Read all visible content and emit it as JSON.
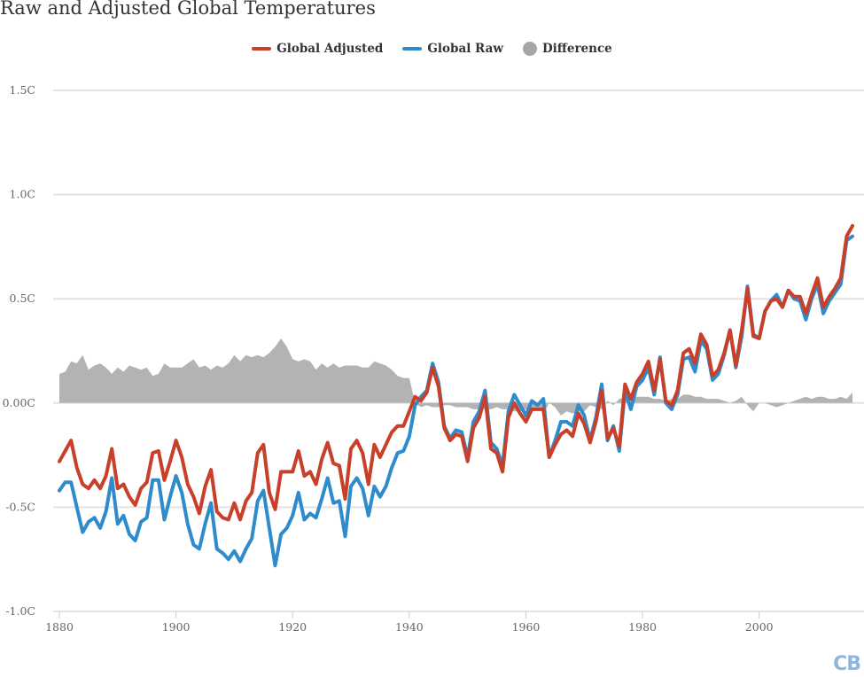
{
  "chart_data": {
    "type": "line",
    "title": "Raw and Adjusted Global Temperatures",
    "xlabel": "",
    "ylabel": "",
    "xlim": [
      1880,
      2016
    ],
    "ylim": [
      -1.0,
      1.5
    ],
    "x_ticks": [
      "1880",
      "1900",
      "1920",
      "1940",
      "1960",
      "1980",
      "2000"
    ],
    "y_ticks": [
      "-1.0C",
      "-0.5C",
      "0.00C",
      "0.5C",
      "1.0C",
      "1.5C"
    ],
    "y_tick_values": [
      -1.0,
      -0.5,
      0.0,
      0.5,
      1.0,
      1.5
    ],
    "x_tick_values": [
      1880,
      1900,
      1920,
      1940,
      1960,
      1980,
      2000
    ],
    "grid": "horizontal",
    "legend_position": "top-center",
    "x_start": 1880,
    "series": [
      {
        "name": "Global Adjusted",
        "type": "line",
        "color": "#c8402a",
        "values": [
          -0.28,
          -0.23,
          -0.18,
          -0.31,
          -0.39,
          -0.41,
          -0.37,
          -0.41,
          -0.35,
          -0.22,
          -0.41,
          -0.39,
          -0.45,
          -0.49,
          -0.41,
          -0.38,
          -0.24,
          -0.23,
          -0.37,
          -0.28,
          -0.18,
          -0.26,
          -0.39,
          -0.45,
          -0.53,
          -0.4,
          -0.32,
          -0.52,
          -0.55,
          -0.56,
          -0.48,
          -0.56,
          -0.47,
          -0.43,
          -0.24,
          -0.2,
          -0.43,
          -0.51,
          -0.33,
          -0.33,
          -0.33,
          -0.23,
          -0.35,
          -0.33,
          -0.39,
          -0.27,
          -0.19,
          -0.29,
          -0.3,
          -0.46,
          -0.22,
          -0.18,
          -0.24,
          -0.39,
          -0.2,
          -0.26,
          -0.2,
          -0.14,
          -0.11,
          -0.11,
          -0.04,
          0.03,
          0.01,
          0.05,
          0.17,
          0.08,
          -0.12,
          -0.18,
          -0.15,
          -0.16,
          -0.28,
          -0.12,
          -0.07,
          0.03,
          -0.22,
          -0.24,
          -0.33,
          -0.07,
          0.0,
          -0.05,
          -0.09,
          -0.03,
          -0.03,
          -0.03,
          -0.26,
          -0.2,
          -0.15,
          -0.13,
          -0.16,
          -0.05,
          -0.1,
          -0.19,
          -0.09,
          0.06,
          -0.17,
          -0.12,
          -0.21,
          0.09,
          0.02,
          0.1,
          0.14,
          0.2,
          0.06,
          0.21,
          0.01,
          -0.01,
          0.06,
          0.24,
          0.26,
          0.19,
          0.33,
          0.28,
          0.13,
          0.16,
          0.24,
          0.35,
          0.18,
          0.35,
          0.55,
          0.32,
          0.31,
          0.44,
          0.49,
          0.5,
          0.46,
          0.54,
          0.51,
          0.51,
          0.43,
          0.52,
          0.6,
          0.46,
          0.51,
          0.55,
          0.6,
          0.8,
          0.85
        ]
      },
      {
        "name": "Global Raw",
        "type": "line",
        "color": "#2e8bcc",
        "values": [
          -0.42,
          -0.38,
          -0.38,
          -0.5,
          -0.62,
          -0.57,
          -0.55,
          -0.6,
          -0.52,
          -0.36,
          -0.58,
          -0.54,
          -0.63,
          -0.66,
          -0.57,
          -0.55,
          -0.37,
          -0.37,
          -0.56,
          -0.45,
          -0.35,
          -0.43,
          -0.58,
          -0.68,
          -0.7,
          -0.58,
          -0.48,
          -0.7,
          -0.72,
          -0.75,
          -0.71,
          -0.76,
          -0.7,
          -0.65,
          -0.47,
          -0.42,
          -0.6,
          -0.78,
          -0.63,
          -0.6,
          -0.54,
          -0.43,
          -0.56,
          -0.53,
          -0.55,
          -0.46,
          -0.36,
          -0.48,
          -0.47,
          -0.64,
          -0.4,
          -0.36,
          -0.41,
          -0.54,
          -0.4,
          -0.45,
          -0.4,
          -0.31,
          -0.24,
          -0.23,
          -0.16,
          -0.01,
          0.03,
          0.06,
          0.19,
          0.1,
          -0.11,
          -0.17,
          -0.13,
          -0.14,
          -0.26,
          -0.09,
          -0.04,
          0.06,
          -0.19,
          -0.22,
          -0.3,
          -0.04,
          0.04,
          -0.01,
          -0.06,
          0.01,
          -0.01,
          0.02,
          -0.26,
          -0.18,
          -0.09,
          -0.09,
          -0.11,
          -0.01,
          -0.06,
          -0.18,
          -0.07,
          0.09,
          -0.18,
          -0.11,
          -0.23,
          0.06,
          -0.03,
          0.08,
          0.11,
          0.17,
          0.04,
          0.22,
          0.0,
          -0.03,
          0.04,
          0.21,
          0.22,
          0.15,
          0.3,
          0.26,
          0.11,
          0.14,
          0.23,
          0.35,
          0.17,
          0.32,
          0.56,
          0.33,
          0.31,
          0.44,
          0.49,
          0.52,
          0.46,
          0.54,
          0.5,
          0.49,
          0.4,
          0.5,
          0.57,
          0.43,
          0.49,
          0.53,
          0.57,
          0.78,
          0.8
        ]
      },
      {
        "name": "Difference",
        "type": "area",
        "color": "#b3b3b3",
        "values": [
          0.14,
          0.15,
          0.2,
          0.19,
          0.23,
          0.16,
          0.18,
          0.19,
          0.17,
          0.14,
          0.17,
          0.15,
          0.18,
          0.17,
          0.16,
          0.17,
          0.13,
          0.14,
          0.19,
          0.17,
          0.17,
          0.17,
          0.19,
          0.21,
          0.17,
          0.18,
          0.16,
          0.18,
          0.17,
          0.19,
          0.23,
          0.2,
          0.23,
          0.22,
          0.23,
          0.22,
          0.24,
          0.27,
          0.31,
          0.27,
          0.21,
          0.2,
          0.21,
          0.2,
          0.16,
          0.19,
          0.17,
          0.19,
          0.17,
          0.18,
          0.18,
          0.18,
          0.17,
          0.17,
          0.2,
          0.19,
          0.18,
          0.16,
          0.13,
          0.12,
          0.12,
          0.0,
          -0.02,
          -0.01,
          -0.02,
          -0.02,
          -0.01,
          -0.01,
          -0.02,
          -0.02,
          -0.02,
          -0.03,
          -0.03,
          -0.03,
          -0.03,
          -0.02,
          -0.03,
          -0.03,
          -0.04,
          -0.04,
          -0.03,
          -0.04,
          -0.02,
          -0.05,
          0.0,
          -0.02,
          -0.06,
          -0.04,
          -0.05,
          -0.04,
          -0.04,
          -0.01,
          -0.02,
          -0.03,
          0.01,
          -0.01,
          0.02,
          0.03,
          0.04,
          0.03,
          0.03,
          0.03,
          0.02,
          0.02,
          0.01,
          0.02,
          0.02,
          0.04,
          0.04,
          0.03,
          0.03,
          0.02,
          0.02,
          0.02,
          0.01,
          0.0,
          0.01,
          0.03,
          -0.01,
          -0.04,
          0.0,
          0.0,
          -0.01,
          -0.02,
          -0.01,
          0.0,
          0.01,
          0.02,
          0.03,
          0.02,
          0.03,
          0.03,
          0.02,
          0.02,
          0.03,
          0.02,
          0.05
        ]
      }
    ]
  },
  "legend": {
    "items": [
      {
        "label": "Global Adjusted",
        "color": "#c8402a"
      },
      {
        "label": "Global Raw",
        "color": "#2e8bcc"
      },
      {
        "label": "Difference",
        "color": "#a6a6a6"
      }
    ]
  },
  "logo": {
    "text": "CB"
  }
}
